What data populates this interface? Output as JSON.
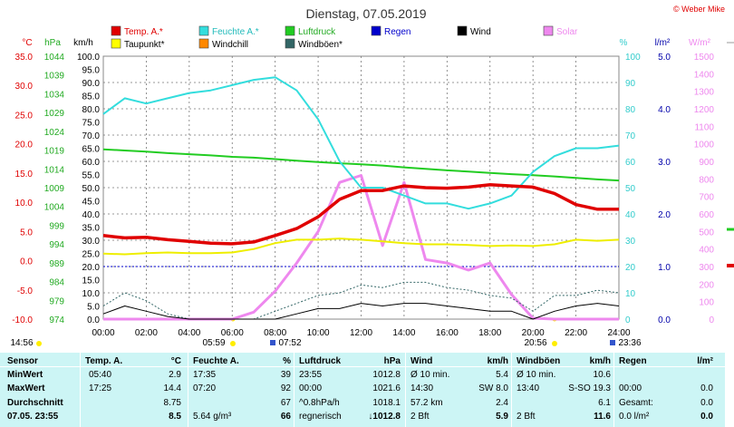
{
  "title": "Dienstag, 07.05.2019",
  "copyright": "© Weber Mike",
  "legend": [
    {
      "label": "Temp. A.*",
      "color": "#e00000"
    },
    {
      "label": "Feuchte A.*",
      "color": "#33dddd"
    },
    {
      "label": "Luftdruck",
      "color": "#22cc22"
    },
    {
      "label": "Regen",
      "color": "#0000cc"
    },
    {
      "label": "Wind",
      "color": "#000000"
    },
    {
      "label": "Solar",
      "color": "#ee88ee"
    },
    {
      "label": "Taupunkt*",
      "color": "#ffff00"
    },
    {
      "label": "Windchill",
      "color": "#ff8800"
    },
    {
      "label": "Windböen*",
      "color": "#336666"
    }
  ],
  "axes": {
    "temp": {
      "unit": "°C",
      "ticks": [
        "35.0",
        "30.0",
        "25.0",
        "20.0",
        "15.0",
        "10.0",
        "5.0",
        "0.0",
        "-5.0",
        "-10.0"
      ],
      "color": "#e00000"
    },
    "hpa": {
      "unit": "hPa",
      "ticks": [
        "1044",
        "1039",
        "1034",
        "1029",
        "1024",
        "1019",
        "1014",
        "1009",
        "1004",
        "999",
        "994",
        "989",
        "984",
        "979",
        "974"
      ],
      "color": "#22aa22"
    },
    "kmh": {
      "unit": "km/h",
      "ticks": [
        "100.0",
        "95.0",
        "90.0",
        "85.0",
        "80.0",
        "75.0",
        "70.0",
        "65.0",
        "60.0",
        "55.0",
        "50.0",
        "45.0",
        "40.0",
        "35.0",
        "30.0",
        "25.0",
        "20.0",
        "15.0",
        "10.0",
        "5.0",
        "0.0"
      ],
      "color": "#000000"
    },
    "pct": {
      "unit": "%",
      "ticks": [
        "100",
        "90",
        "80",
        "70",
        "60",
        "50",
        "40",
        "30",
        "20",
        "10",
        "0"
      ],
      "color": "#33cccc"
    },
    "rain": {
      "unit": "l/m²",
      "ticks": [
        "5.0",
        "4.0",
        "3.0",
        "2.0",
        "1.0",
        "0.0"
      ],
      "color": "#0000aa"
    },
    "solar": {
      "unit": "W/m²",
      "ticks": [
        "1500",
        "1400",
        "1300",
        "1200",
        "1100",
        "1000",
        "900",
        "800",
        "700",
        "600",
        "500",
        "400",
        "300",
        "200",
        "100",
        "0"
      ],
      "color": "#ee88ee"
    },
    "x": {
      "ticks": [
        "00:00",
        "02:00",
        "04:00",
        "06:00",
        "08:00",
        "10:00",
        "12:00",
        "14:00",
        "16:00",
        "18:00",
        "20:00",
        "22:00",
        "24:00"
      ]
    }
  },
  "sun_marks": {
    "sunrise_left": "14:56",
    "sunrise": "05:59",
    "moonrise": "07:52",
    "sunset": "20:56",
    "moonset": "23:36"
  },
  "chart_data": {
    "type": "line",
    "x_hours": [
      0,
      1,
      2,
      3,
      4,
      5,
      6,
      7,
      8,
      9,
      10,
      11,
      12,
      13,
      14,
      15,
      16,
      17,
      18,
      19,
      20,
      21,
      22,
      23,
      24
    ],
    "series": [
      {
        "name": "Temp. A.*",
        "unit": "°C",
        "values": [
          4.3,
          3.9,
          4.0,
          3.6,
          3.3,
          3.0,
          2.9,
          3.2,
          4.3,
          5.5,
          7.5,
          10.5,
          12.0,
          12.0,
          12.8,
          12.5,
          12.4,
          12.6,
          13.0,
          12.8,
          12.6,
          11.5,
          9.6,
          8.8,
          8.8
        ]
      },
      {
        "name": "Feuchte A.*",
        "unit": "%",
        "values": [
          78,
          84,
          82,
          84,
          86,
          87,
          89,
          91,
          92,
          87,
          76,
          60,
          50,
          50,
          47,
          44,
          44,
          42,
          44,
          47,
          56,
          62,
          65,
          65,
          66
        ]
      },
      {
        "name": "Luftdruck",
        "unit": "hPa",
        "values": [
          1019.2,
          1018.9,
          1018.6,
          1018.2,
          1017.9,
          1017.6,
          1017.2,
          1017.0,
          1016.6,
          1016.2,
          1015.8,
          1015.5,
          1015.2,
          1014.9,
          1014.4,
          1014.0,
          1013.6,
          1013.3,
          1012.9,
          1012.6,
          1012.3,
          1012.0,
          1011.6,
          1011.2,
          1010.9
        ]
      },
      {
        "name": "Taupunkt*",
        "unit": "°C",
        "values": [
          1.2,
          1.1,
          1.3,
          1.4,
          1.3,
          1.3,
          1.4,
          2.0,
          3.0,
          3.6,
          3.6,
          3.8,
          3.6,
          3.3,
          3.0,
          2.8,
          2.8,
          2.7,
          2.5,
          2.6,
          2.5,
          2.8,
          3.6,
          3.4,
          3.6
        ]
      },
      {
        "name": "Wind",
        "unit": "km/h",
        "values": [
          2,
          5,
          3,
          1,
          0,
          0,
          0,
          0,
          0,
          2,
          4,
          4,
          6,
          5,
          6,
          6,
          5,
          4,
          3,
          3,
          0,
          3,
          5,
          6,
          5
        ]
      },
      {
        "name": "Windböen*",
        "unit": "km/h",
        "values": [
          5,
          10,
          7,
          2,
          0,
          0,
          0,
          0,
          3,
          6,
          9,
          10,
          13,
          12,
          14,
          14,
          12,
          11,
          9,
          8,
          3,
          9,
          9,
          11,
          10
        ]
      },
      {
        "name": "Solar",
        "unit": "W/m²",
        "values": [
          0,
          0,
          0,
          0,
          0,
          0,
          0,
          40,
          160,
          320,
          500,
          780,
          820,
          420,
          780,
          340,
          320,
          280,
          320,
          140,
          5,
          0,
          0,
          0,
          0
        ]
      },
      {
        "name": "Regen",
        "unit": "l/m²",
        "values": [
          0,
          0,
          0,
          0,
          0,
          0,
          0,
          0,
          0,
          0,
          0,
          0,
          0,
          0,
          0,
          0,
          0,
          0,
          0,
          0,
          0,
          0,
          0,
          0,
          0
        ]
      }
    ]
  },
  "table": {
    "headers": [
      {
        "label": "Sensor",
        "unit": ""
      },
      {
        "label": "Temp. A.",
        "unit": "°C"
      },
      {
        "label": "Feuchte A.",
        "unit": "%"
      },
      {
        "label": "Luftdruck",
        "unit": "hPa"
      },
      {
        "label": "Wind",
        "unit": "km/h"
      },
      {
        "label": "Windböen",
        "unit": "km/h"
      },
      {
        "label": "Regen",
        "unit": "l/m²"
      }
    ],
    "rows": [
      {
        "label": "MinWert",
        "cells": [
          [
            "05:40",
            "2.9"
          ],
          [
            "17:35",
            "39"
          ],
          [
            "23:55",
            "1012.8"
          ],
          [
            "Ø 10 min.",
            "5.4"
          ],
          [
            "Ø 10 min.",
            "10.6"
          ],
          [
            "",
            ""
          ]
        ]
      },
      {
        "label": "MaxWert",
        "cells": [
          [
            "17:25",
            "14.4"
          ],
          [
            "07:20",
            "92"
          ],
          [
            "00:00",
            "1021.6"
          ],
          [
            "14:30",
            "SW 8.0"
          ],
          [
            "13:40",
            "S-SO 19.3"
          ],
          [
            "00:00",
            "0.0"
          ]
        ]
      },
      {
        "label": "Durchschnitt",
        "cells": [
          [
            "",
            "8.75"
          ],
          [
            "",
            "67"
          ],
          [
            "^0.8hPa/h",
            "1018.1"
          ],
          [
            "57.2 km",
            "2.4"
          ],
          [
            "",
            "6.1"
          ],
          [
            "Gesamt:",
            "0.0"
          ]
        ]
      },
      {
        "label": "07.05. 23:55",
        "cells": [
          [
            "",
            "8.5"
          ],
          [
            "5.64 g/m³",
            "66"
          ],
          [
            "regnerisch",
            "↓1012.8"
          ],
          [
            "2 Bft",
            "5.9"
          ],
          [
            "2 Bft",
            "11.6"
          ],
          [
            "0.0 l/m²",
            "0.0"
          ]
        ]
      }
    ]
  }
}
